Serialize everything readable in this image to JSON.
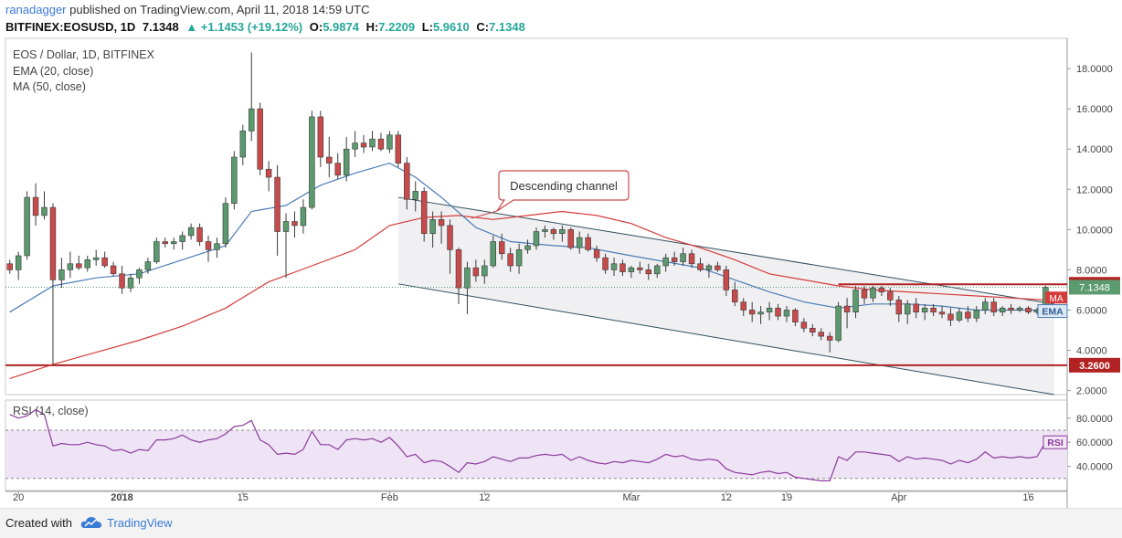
{
  "header": {
    "author": "ranadagger",
    "published_text": "published on TradingView.com, April 11, 2018 14:59 UTC",
    "symbol": "BITFINEX:EOSUSD, 1D",
    "last": "7.1348",
    "change": "▲ +1.1453 (+19.12%)",
    "o_label": "O:",
    "o_value": "5.9874",
    "h_label": "H:",
    "h_value": "7.2209",
    "l_label": "L:",
    "l_value": "5.9610",
    "c_label": "C:",
    "c_value": "7.1348"
  },
  "legend": {
    "title": "EOS / Dollar, 1D, BITFINEX",
    "ema": "EMA (20, close)",
    "ma": "MA (50, close)",
    "rsi": "RSI (14, close)"
  },
  "annotation": {
    "text": "Descending channel"
  },
  "footer": {
    "created": "Created with",
    "brand": "TradingView"
  },
  "colors": {
    "up": "#5b9a6f",
    "down": "#c94a4a",
    "ema": "#4a7cb5",
    "ma": "#d63b3b",
    "rsi": "#8b3a9c",
    "channel": "#2f4f5f",
    "level": "#b22222"
  },
  "chart_data": {
    "type": "candlestick",
    "y_ticks": [
      "18.0000",
      "16.0000",
      "14.0000",
      "12.0000",
      "10.0000",
      "8.0000",
      "6.0000",
      "4.0000",
      "2.0000"
    ],
    "ylim": [
      1.8,
      19.5
    ],
    "x_tick_labels": [
      {
        "label": "20",
        "i": 1
      },
      {
        "label": "2018",
        "i": 13
      },
      {
        "label": "15",
        "i": 27
      },
      {
        "label": "Feb",
        "i": 44
      },
      {
        "label": "12",
        "i": 55
      },
      {
        "label": "Mar",
        "i": 72
      },
      {
        "label": "12",
        "i": 83
      },
      {
        "label": "19",
        "i": 90
      },
      {
        "label": "Apr",
        "i": 103
      },
      {
        "label": "16",
        "i": 118
      }
    ],
    "x_count": 123,
    "candles": [
      [
        8.3,
        8.5,
        7.8,
        8.0
      ],
      [
        8.0,
        8.9,
        7.5,
        8.7
      ],
      [
        8.7,
        11.9,
        8.5,
        11.6
      ],
      [
        11.6,
        12.3,
        10.2,
        10.7
      ],
      [
        10.7,
        11.9,
        10.5,
        11.1
      ],
      [
        11.1,
        11.3,
        3.26,
        7.5
      ],
      [
        7.5,
        8.6,
        7.1,
        8.0
      ],
      [
        8.0,
        8.9,
        7.6,
        8.3
      ],
      [
        8.3,
        8.7,
        8.0,
        8.1
      ],
      [
        8.1,
        8.7,
        7.9,
        8.5
      ],
      [
        8.5,
        9.0,
        8.2,
        8.6
      ],
      [
        8.6,
        8.9,
        8.1,
        8.2
      ],
      [
        8.2,
        8.4,
        7.7,
        7.8
      ],
      [
        7.8,
        8.2,
        6.8,
        7.1
      ],
      [
        7.1,
        7.8,
        6.9,
        7.6
      ],
      [
        7.6,
        8.1,
        7.3,
        8.0
      ],
      [
        8.0,
        8.6,
        7.8,
        8.4
      ],
      [
        8.4,
        9.6,
        8.3,
        9.4
      ],
      [
        9.4,
        9.6,
        9.1,
        9.3
      ],
      [
        9.3,
        9.6,
        9.0,
        9.4
      ],
      [
        9.4,
        9.9,
        9.0,
        9.7
      ],
      [
        9.7,
        10.3,
        9.5,
        10.1
      ],
      [
        10.1,
        10.3,
        9.2,
        9.4
      ],
      [
        9.4,
        9.7,
        8.4,
        9.0
      ],
      [
        9.0,
        9.6,
        8.6,
        9.3
      ],
      [
        9.3,
        11.6,
        9.1,
        11.3
      ],
      [
        11.3,
        13.9,
        11.0,
        13.6
      ],
      [
        13.6,
        15.2,
        13.2,
        14.9
      ],
      [
        14.9,
        18.8,
        14.4,
        16.0
      ],
      [
        16.0,
        16.3,
        12.7,
        13.0
      ],
      [
        13.0,
        13.4,
        11.9,
        12.6
      ],
      [
        12.6,
        13.2,
        8.7,
        9.9
      ],
      [
        9.9,
        10.8,
        7.6,
        10.4
      ],
      [
        10.4,
        10.9,
        9.6,
        10.2
      ],
      [
        10.2,
        11.5,
        9.8,
        11.1
      ],
      [
        11.1,
        15.9,
        11.0,
        15.6
      ],
      [
        15.6,
        15.9,
        13.1,
        13.6
      ],
      [
        13.6,
        14.6,
        12.6,
        13.3
      ],
      [
        13.3,
        13.8,
        12.5,
        12.7
      ],
      [
        12.7,
        14.6,
        12.4,
        14.0
      ],
      [
        14.0,
        14.9,
        13.6,
        14.3
      ],
      [
        14.3,
        14.7,
        13.8,
        14.1
      ],
      [
        14.1,
        14.9,
        13.9,
        14.5
      ],
      [
        14.5,
        14.8,
        13.9,
        14.0
      ],
      [
        14.0,
        14.9,
        13.8,
        14.7
      ],
      [
        14.7,
        14.9,
        13.1,
        13.3
      ],
      [
        13.3,
        13.6,
        11.0,
        11.5
      ],
      [
        11.5,
        12.4,
        10.9,
        11.9
      ],
      [
        11.9,
        12.1,
        9.4,
        9.8
      ],
      [
        9.8,
        10.9,
        9.1,
        10.5
      ],
      [
        10.5,
        10.9,
        9.3,
        10.2
      ],
      [
        10.2,
        10.5,
        7.8,
        9.0
      ],
      [
        9.0,
        9.1,
        6.3,
        7.1
      ],
      [
        7.1,
        8.4,
        5.8,
        8.1
      ],
      [
        8.1,
        8.5,
        7.4,
        7.7
      ],
      [
        7.7,
        8.5,
        7.3,
        8.2
      ],
      [
        8.2,
        9.7,
        8.1,
        9.4
      ],
      [
        9.4,
        9.8,
        8.5,
        8.8
      ],
      [
        8.8,
        9.1,
        7.9,
        8.2
      ],
      [
        8.2,
        9.3,
        7.8,
        9.0
      ],
      [
        9.0,
        9.5,
        8.8,
        9.2
      ],
      [
        9.2,
        10.1,
        9.0,
        9.9
      ],
      [
        9.9,
        10.2,
        9.6,
        10.0
      ],
      [
        10.0,
        10.1,
        9.5,
        9.8
      ],
      [
        9.8,
        10.2,
        9.4,
        10.0
      ],
      [
        10.0,
        10.1,
        9.0,
        9.1
      ],
      [
        9.1,
        9.9,
        8.8,
        9.6
      ],
      [
        9.6,
        9.8,
        8.9,
        9.0
      ],
      [
        9.0,
        9.2,
        8.4,
        8.6
      ],
      [
        8.6,
        8.8,
        7.8,
        8.0
      ],
      [
        8.0,
        8.6,
        7.7,
        8.3
      ],
      [
        8.3,
        8.5,
        7.7,
        7.9
      ],
      [
        7.9,
        8.2,
        7.6,
        8.1
      ],
      [
        8.1,
        8.4,
        7.8,
        8.0
      ],
      [
        8.0,
        8.3,
        7.5,
        7.8
      ],
      [
        7.8,
        8.3,
        7.6,
        8.2
      ],
      [
        8.2,
        8.8,
        7.9,
        8.6
      ],
      [
        8.6,
        8.9,
        8.2,
        8.4
      ],
      [
        8.4,
        9.1,
        8.2,
        8.8
      ],
      [
        8.8,
        9.0,
        8.1,
        8.3
      ],
      [
        8.3,
        8.6,
        7.9,
        8.0
      ],
      [
        8.0,
        8.3,
        7.6,
        8.2
      ],
      [
        8.2,
        8.4,
        7.9,
        8.0
      ],
      [
        8.0,
        8.2,
        6.7,
        7.0
      ],
      [
        7.0,
        7.4,
        6.2,
        6.4
      ],
      [
        6.4,
        6.6,
        5.7,
        6.0
      ],
      [
        6.0,
        6.4,
        5.4,
        5.8
      ],
      [
        5.8,
        6.2,
        5.3,
        5.9
      ],
      [
        5.9,
        6.4,
        5.5,
        6.1
      ],
      [
        6.1,
        6.3,
        5.5,
        5.7
      ],
      [
        5.7,
        6.2,
        5.4,
        6.0
      ],
      [
        6.0,
        6.1,
        5.2,
        5.4
      ],
      [
        5.4,
        5.6,
        4.9,
        5.1
      ],
      [
        5.1,
        5.3,
        4.7,
        4.9
      ],
      [
        4.9,
        5.1,
        4.5,
        4.7
      ],
      [
        4.7,
        4.9,
        3.9,
        4.5
      ],
      [
        4.5,
        6.4,
        4.4,
        6.2
      ],
      [
        6.2,
        6.6,
        5.1,
        5.9
      ],
      [
        5.9,
        7.2,
        5.6,
        7.0
      ],
      [
        7.0,
        7.2,
        6.3,
        6.6
      ],
      [
        6.6,
        7.2,
        6.4,
        7.1
      ],
      [
        7.1,
        7.2,
        6.7,
        6.9
      ],
      [
        6.9,
        7.1,
        6.2,
        6.5
      ],
      [
        6.5,
        6.7,
        5.4,
        5.8
      ],
      [
        5.8,
        6.5,
        5.3,
        6.3
      ],
      [
        6.3,
        6.6,
        5.6,
        5.9
      ],
      [
        5.9,
        6.3,
        5.5,
        6.1
      ],
      [
        6.1,
        6.3,
        5.7,
        5.9
      ],
      [
        5.9,
        6.2,
        5.6,
        5.8
      ],
      [
        5.8,
        6.1,
        5.2,
        5.5
      ],
      [
        5.5,
        6.1,
        5.4,
        5.9
      ],
      [
        5.9,
        6.2,
        5.4,
        5.6
      ],
      [
        5.6,
        6.2,
        5.4,
        6.0
      ],
      [
        6.0,
        6.6,
        5.8,
        6.4
      ],
      [
        6.4,
        6.6,
        5.7,
        5.9
      ],
      [
        5.9,
        6.2,
        5.7,
        6.1
      ],
      [
        6.1,
        6.3,
        5.8,
        6.0
      ],
      [
        6.0,
        6.2,
        5.9,
        6.1
      ],
      [
        6.1,
        6.2,
        5.8,
        5.9
      ],
      [
        5.9,
        6.1,
        5.8,
        6.0
      ],
      [
        5.99,
        7.22,
        5.96,
        7.13
      ]
    ],
    "ema": [
      [
        0,
        5.9
      ],
      [
        5,
        7.2
      ],
      [
        10,
        7.6
      ],
      [
        15,
        7.8
      ],
      [
        20,
        8.5
      ],
      [
        25,
        9.2
      ],
      [
        28,
        10.9
      ],
      [
        32,
        11.2
      ],
      [
        36,
        12.2
      ],
      [
        40,
        12.8
      ],
      [
        44,
        13.3
      ],
      [
        47,
        12.6
      ],
      [
        50,
        11.6
      ],
      [
        54,
        10.1
      ],
      [
        58,
        9.4
      ],
      [
        63,
        9.2
      ],
      [
        67,
        9.1
      ],
      [
        72,
        8.7
      ],
      [
        76,
        8.4
      ],
      [
        80,
        8.1
      ],
      [
        84,
        7.5
      ],
      [
        88,
        6.9
      ],
      [
        92,
        6.4
      ],
      [
        96,
        6.1
      ],
      [
        100,
        6.3
      ],
      [
        104,
        6.3
      ],
      [
        108,
        6.2
      ],
      [
        112,
        6.0
      ],
      [
        116,
        6.0
      ],
      [
        120,
        6.0
      ],
      [
        121,
        6.2
      ]
    ],
    "ma": [
      [
        0,
        2.6
      ],
      [
        5,
        3.3
      ],
      [
        10,
        3.9
      ],
      [
        15,
        4.5
      ],
      [
        20,
        5.2
      ],
      [
        25,
        6.1
      ],
      [
        30,
        7.4
      ],
      [
        35,
        8.2
      ],
      [
        40,
        9.0
      ],
      [
        44,
        10.2
      ],
      [
        48,
        10.6
      ],
      [
        52,
        10.7
      ],
      [
        56,
        10.5
      ],
      [
        60,
        10.7
      ],
      [
        64,
        10.9
      ],
      [
        68,
        10.7
      ],
      [
        72,
        10.3
      ],
      [
        76,
        9.6
      ],
      [
        80,
        9.1
      ],
      [
        84,
        8.5
      ],
      [
        88,
        7.8
      ],
      [
        92,
        7.5
      ],
      [
        96,
        7.2
      ],
      [
        100,
        7.0
      ],
      [
        104,
        6.9
      ],
      [
        108,
        6.8
      ],
      [
        112,
        6.7
      ],
      [
        116,
        6.6
      ],
      [
        120,
        6.5
      ],
      [
        121,
        6.6
      ]
    ],
    "rsi": [
      [
        0,
        83
      ],
      [
        1,
        80
      ],
      [
        2,
        82
      ],
      [
        3,
        87
      ],
      [
        4,
        83
      ],
      [
        5,
        57
      ],
      [
        6,
        59
      ],
      [
        7,
        58
      ],
      [
        8,
        58
      ],
      [
        9,
        60
      ],
      [
        10,
        58
      ],
      [
        11,
        57
      ],
      [
        12,
        53
      ],
      [
        13,
        54
      ],
      [
        14,
        51
      ],
      [
        15,
        54
      ],
      [
        16,
        53
      ],
      [
        17,
        62
      ],
      [
        18,
        62
      ],
      [
        19,
        63
      ],
      [
        20,
        66
      ],
      [
        21,
        62
      ],
      [
        22,
        60
      ],
      [
        23,
        62
      ],
      [
        24,
        63
      ],
      [
        25,
        67
      ],
      [
        26,
        73
      ],
      [
        27,
        74
      ],
      [
        28,
        78
      ],
      [
        29,
        62
      ],
      [
        30,
        58
      ],
      [
        31,
        50
      ],
      [
        32,
        51
      ],
      [
        33,
        50
      ],
      [
        34,
        54
      ],
      [
        35,
        69
      ],
      [
        36,
        58
      ],
      [
        37,
        58
      ],
      [
        38,
        54
      ],
      [
        39,
        62
      ],
      [
        40,
        63
      ],
      [
        41,
        62
      ],
      [
        42,
        63
      ],
      [
        43,
        60
      ],
      [
        44,
        64
      ],
      [
        45,
        57
      ],
      [
        46,
        48
      ],
      [
        47,
        50
      ],
      [
        48,
        43
      ],
      [
        49,
        45
      ],
      [
        50,
        44
      ],
      [
        51,
        40
      ],
      [
        52,
        35
      ],
      [
        53,
        43
      ],
      [
        54,
        42
      ],
      [
        55,
        44
      ],
      [
        56,
        48
      ],
      [
        57,
        46
      ],
      [
        58,
        44
      ],
      [
        59,
        47
      ],
      [
        60,
        47
      ],
      [
        61,
        49
      ],
      [
        62,
        50
      ],
      [
        63,
        49
      ],
      [
        64,
        50
      ],
      [
        65,
        45
      ],
      [
        66,
        48
      ],
      [
        67,
        45
      ],
      [
        68,
        43
      ],
      [
        69,
        42
      ],
      [
        70,
        44
      ],
      [
        71,
        43
      ],
      [
        72,
        45
      ],
      [
        73,
        44
      ],
      [
        74,
        43
      ],
      [
        75,
        46
      ],
      [
        76,
        50
      ],
      [
        77,
        48
      ],
      [
        78,
        49
      ],
      [
        79,
        46
      ],
      [
        80,
        45
      ],
      [
        81,
        46
      ],
      [
        82,
        45
      ],
      [
        83,
        38
      ],
      [
        84,
        35
      ],
      [
        85,
        34
      ],
      [
        86,
        33
      ],
      [
        87,
        35
      ],
      [
        88,
        36
      ],
      [
        89,
        34
      ],
      [
        90,
        35
      ],
      [
        91,
        31
      ],
      [
        92,
        30
      ],
      [
        93,
        29
      ],
      [
        94,
        28
      ],
      [
        95,
        28
      ],
      [
        96,
        48
      ],
      [
        97,
        45
      ],
      [
        98,
        52
      ],
      [
        99,
        52
      ],
      [
        100,
        51
      ],
      [
        101,
        50
      ],
      [
        102,
        49
      ],
      [
        103,
        44
      ],
      [
        104,
        48
      ],
      [
        105,
        46
      ],
      [
        106,
        47
      ],
      [
        107,
        46
      ],
      [
        108,
        45
      ],
      [
        109,
        42
      ],
      [
        110,
        45
      ],
      [
        111,
        43
      ],
      [
        112,
        46
      ],
      [
        113,
        52
      ],
      [
        114,
        47
      ],
      [
        115,
        48
      ],
      [
        116,
        47
      ],
      [
        117,
        48
      ],
      [
        118,
        47
      ],
      [
        119,
        48
      ],
      [
        120,
        60
      ]
    ],
    "rsi_ticks": [
      "80.0000",
      "60.0000",
      "40.0000"
    ],
    "rsi_lim": [
      20,
      95
    ],
    "rsi_band": [
      30,
      70
    ],
    "levels": [
      {
        "label": "7.2800",
        "value": 7.28
      },
      {
        "label": "3.2600",
        "value": 3.26
      }
    ],
    "last_price_label": "7.1348",
    "last_price": 7.1348,
    "tags": {
      "ma": "MA",
      "ema": "EMA",
      "rsi": "RSI"
    },
    "channel_upper": [
      [
        45,
        11.6
      ],
      [
        121,
        6.3
      ]
    ],
    "channel_lower": [
      [
        45,
        7.3
      ],
      [
        121,
        1.8
      ]
    ]
  }
}
